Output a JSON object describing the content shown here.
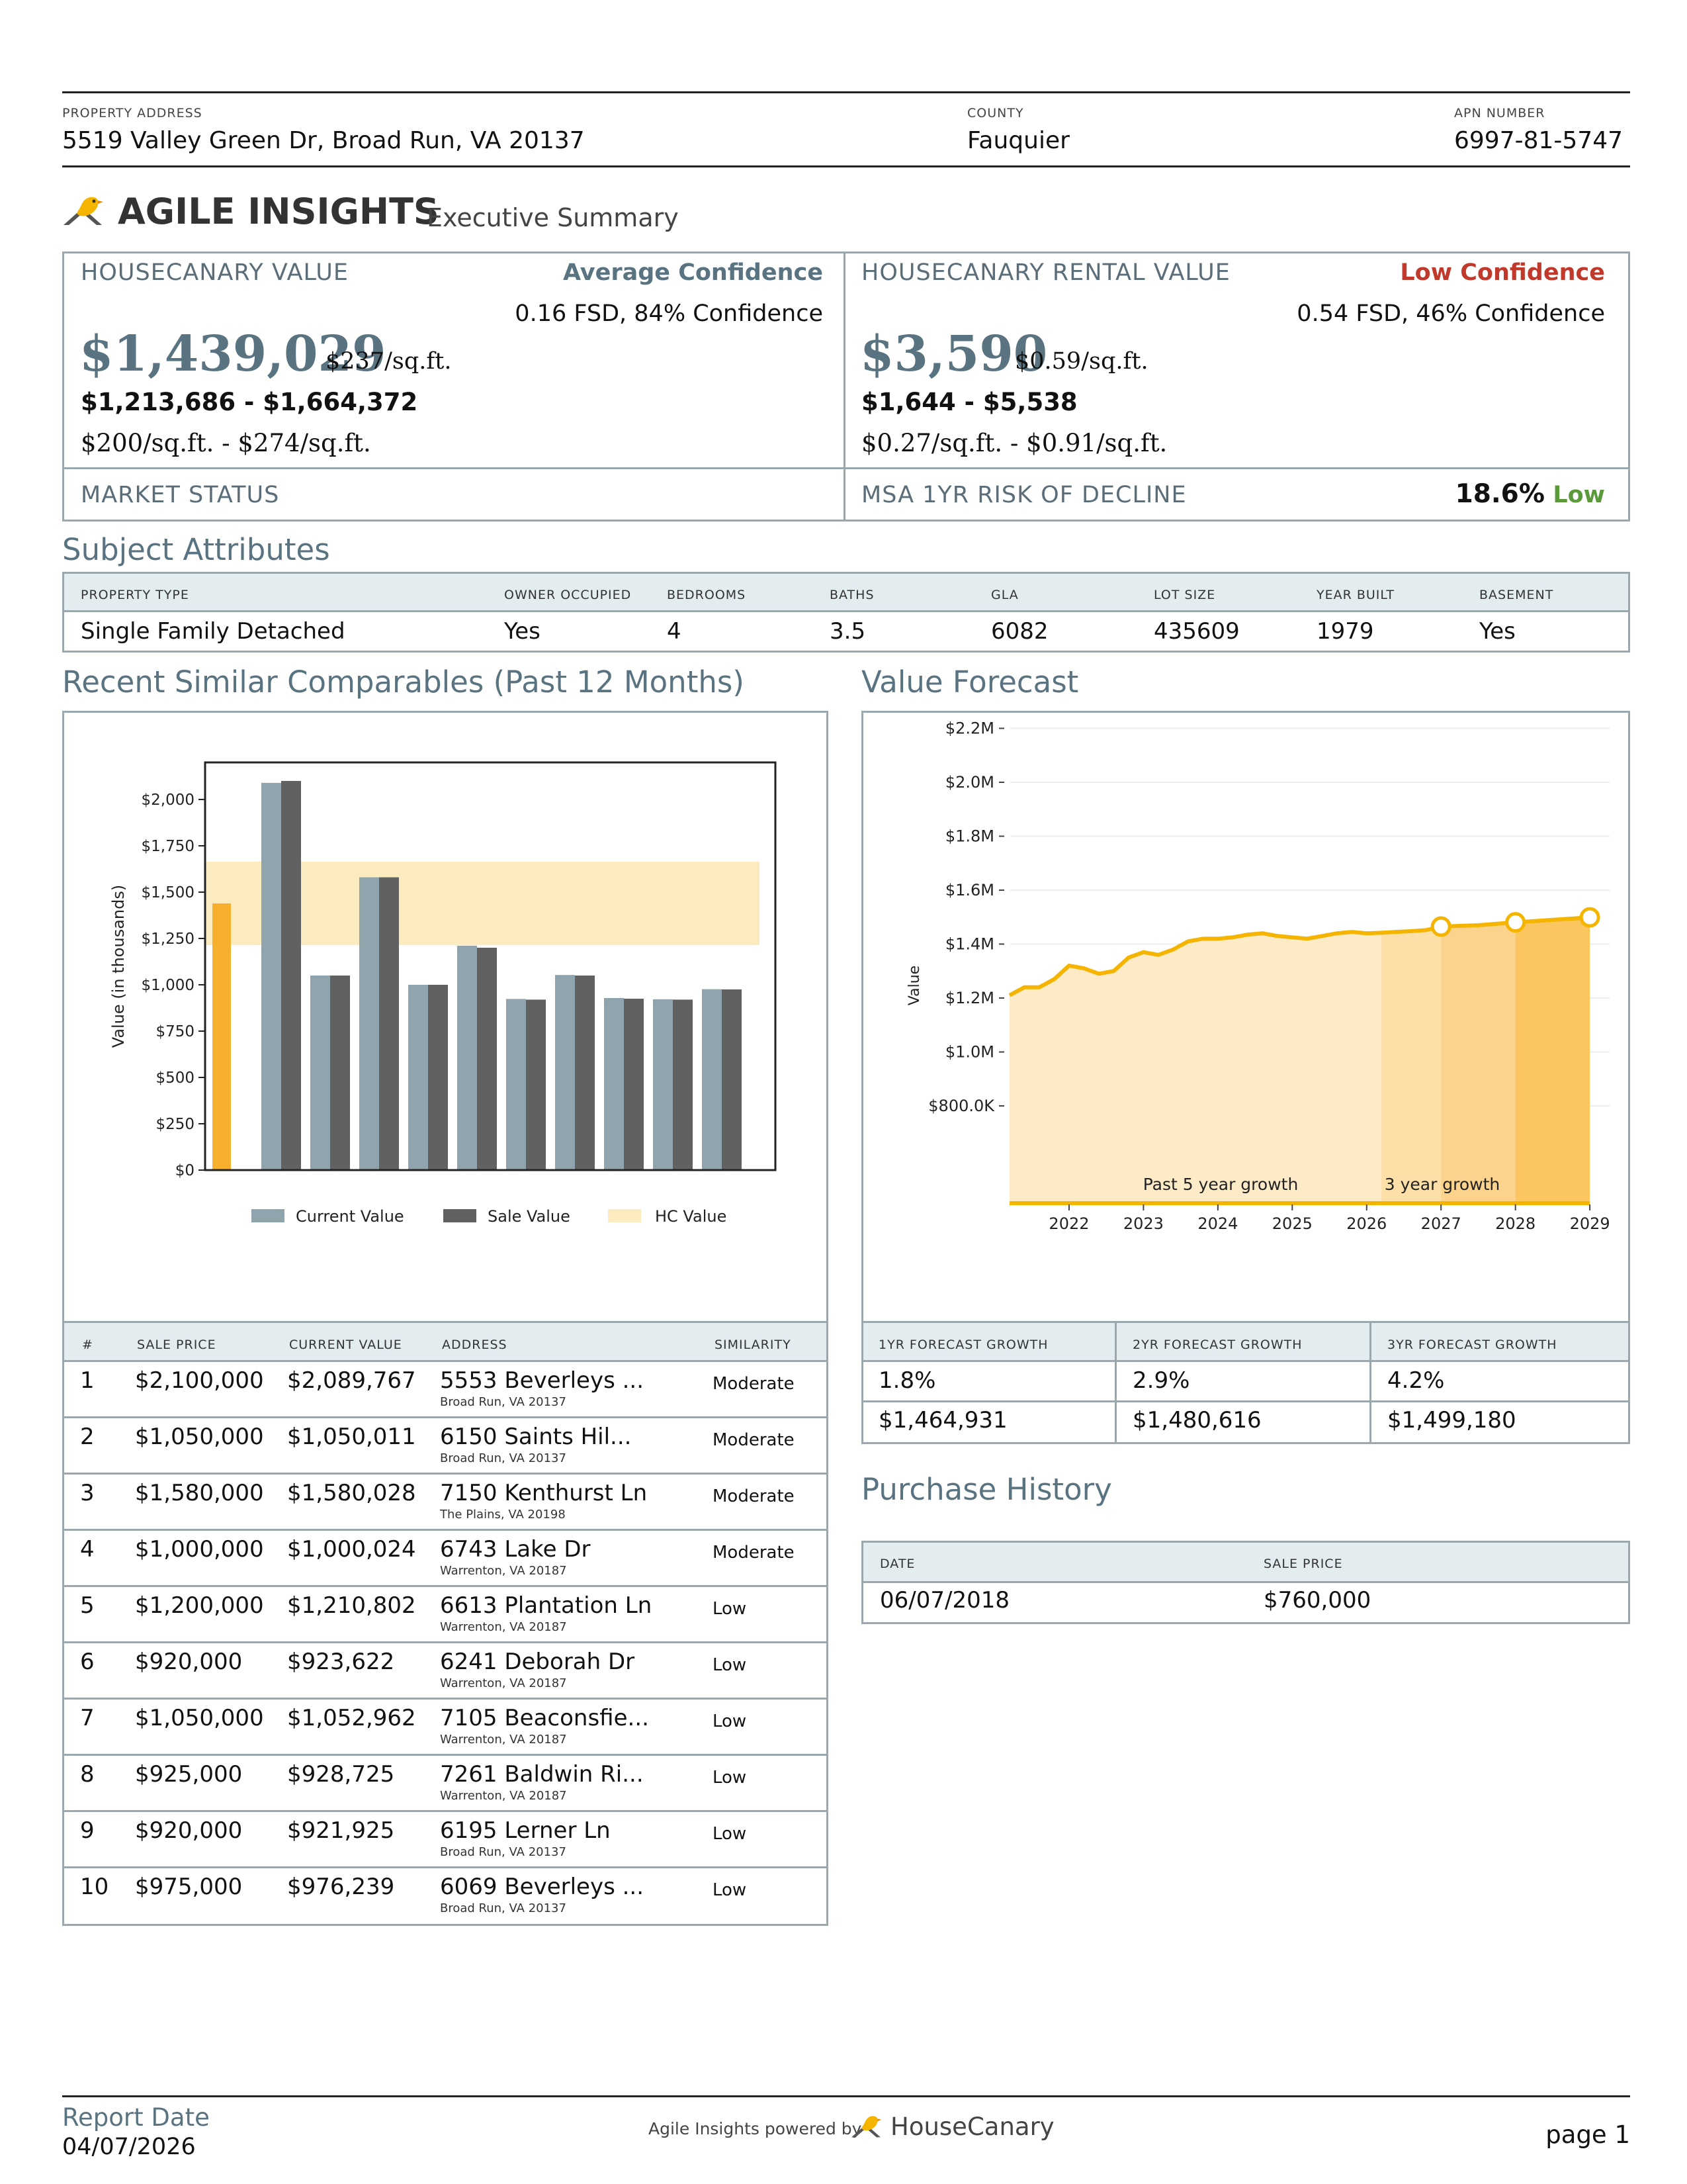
{
  "header": {
    "address_label": "PROPERTY ADDRESS",
    "address": "5519 Valley Green Dr, Broad Run, VA 20137",
    "county_label": "COUNTY",
    "county": "Fauquier",
    "apn_label": "APN NUMBER",
    "apn": "6997-81-5747"
  },
  "brand": {
    "title": "AGILE INSIGHTS",
    "subtitle": "Executive Summary"
  },
  "value": {
    "label": "HOUSECANARY VALUE",
    "confidence": "Average Confidence",
    "fsd": "0.16 FSD, 84% Confidence",
    "amount": "$1,439,029",
    "per_sqft": "$237/sq.ft.",
    "range": "$1,213,686 - $1,664,372",
    "range_sqft": "$200/sq.ft. - $274/sq.ft."
  },
  "rental": {
    "label": "HOUSECANARY RENTAL VALUE",
    "confidence": "Low Confidence",
    "fsd": "0.54 FSD, 46% Confidence",
    "amount": "$3,590",
    "per_sqft": "$0.59/sq.ft.",
    "range": "$1,644 - $5,538",
    "range_sqft": "$0.27/sq.ft. - $0.91/sq.ft."
  },
  "market": {
    "label": "MARKET STATUS",
    "risk_label": "MSA 1YR RISK OF DECLINE",
    "risk_value": "18.6%",
    "risk_level": "Low"
  },
  "attributes": {
    "title": "Subject Attributes",
    "headers": [
      "PROPERTY TYPE",
      "OWNER OCCUPIED",
      "BEDROOMS",
      "BATHS",
      "GLA",
      "LOT SIZE",
      "YEAR BUILT",
      "BASEMENT"
    ],
    "values": [
      "Single Family Detached",
      "Yes",
      "4",
      "3.5",
      "6082",
      "435609",
      "1979",
      "Yes"
    ]
  },
  "comparables": {
    "title": "Recent Similar Comparables (Past 12 Months)",
    "headers": [
      "#",
      "SALE PRICE",
      "CURRENT VALUE",
      "ADDRESS",
      "SIMILARITY"
    ],
    "rows": [
      {
        "n": "1",
        "sale": "$2,100,000",
        "current": "$2,089,767",
        "addr": "5553 Beverleys ...",
        "city": "Broad Run, VA 20137",
        "sim": "Moderate"
      },
      {
        "n": "2",
        "sale": "$1,050,000",
        "current": "$1,050,011",
        "addr": "6150 Saints Hil...",
        "city": "Broad Run, VA 20137",
        "sim": "Moderate"
      },
      {
        "n": "3",
        "sale": "$1,580,000",
        "current": "$1,580,028",
        "addr": "7150 Kenthurst Ln",
        "city": "The Plains, VA 20198",
        "sim": "Moderate"
      },
      {
        "n": "4",
        "sale": "$1,000,000",
        "current": "$1,000,024",
        "addr": "6743 Lake Dr",
        "city": "Warrenton, VA 20187",
        "sim": "Moderate"
      },
      {
        "n": "5",
        "sale": "$1,200,000",
        "current": "$1,210,802",
        "addr": "6613 Plantation Ln",
        "city": "Warrenton, VA 20187",
        "sim": "Low"
      },
      {
        "n": "6",
        "sale": "$920,000",
        "current": "$923,622",
        "addr": "6241 Deborah Dr",
        "city": "Warrenton, VA 20187",
        "sim": "Low"
      },
      {
        "n": "7",
        "sale": "$1,050,000",
        "current": "$1,052,962",
        "addr": "7105 Beaconsfie...",
        "city": "Warrenton, VA 20187",
        "sim": "Low"
      },
      {
        "n": "8",
        "sale": "$925,000",
        "current": "$928,725",
        "addr": "7261 Baldwin Ri...",
        "city": "Warrenton, VA 20187",
        "sim": "Low"
      },
      {
        "n": "9",
        "sale": "$920,000",
        "current": "$921,925",
        "addr": "6195 Lerner Ln",
        "city": "Broad Run, VA 20137",
        "sim": "Low"
      },
      {
        "n": "10",
        "sale": "$975,000",
        "current": "$976,239",
        "addr": "6069 Beverleys ...",
        "city": "Broad Run, VA 20137",
        "sim": "Low"
      }
    ]
  },
  "forecast": {
    "title": "Value Forecast",
    "headers": [
      "1YR FORECAST GROWTH",
      "2YR FORECAST GROWTH",
      "3YR FORECAST GROWTH"
    ],
    "pct": [
      "1.8%",
      "2.9%",
      "4.2%"
    ],
    "values": [
      "$1,464,931",
      "$1,480,616",
      "$1,499,180"
    ]
  },
  "purchase": {
    "title": "Purchase History",
    "headers": [
      "DATE",
      "SALE PRICE"
    ],
    "values": [
      "06/07/2018",
      "$760,000"
    ]
  },
  "footer": {
    "report_label": "Report Date",
    "report_date": "04/07/2026",
    "powered": "Agile Insights powered by",
    "brand": "HouseCanary",
    "page": "page 1"
  },
  "colors": {
    "accent": "#5a7380",
    "low_red": "#c0392b",
    "low_green": "#5a9a3a",
    "current_bar": "#90a4ae",
    "sale_bar": "#616161",
    "hc_band": "#fdebc0",
    "subject_bar": "#f7b02e"
  },
  "chart_data": [
    {
      "type": "bar",
      "ylabel": "Value (in thousands)",
      "ylim": [
        0,
        2200
      ],
      "y_ticks": [
        "$0",
        "$250",
        "$500",
        "$750",
        "$1,000",
        "$1,250",
        "$1,500",
        "$1,750",
        "$2,000"
      ],
      "subject_value": 1439,
      "hc_band": [
        1213.686,
        1664.372
      ],
      "series": [
        {
          "name": "Current Value",
          "values": [
            2089.767,
            1050.011,
            1580.028,
            1000.024,
            1210.802,
            923.622,
            1052.962,
            928.725,
            921.925,
            976.239
          ]
        },
        {
          "name": "Sale Value",
          "values": [
            2100,
            1050,
            1580,
            1000,
            1200,
            920,
            1050,
            925,
            920,
            975
          ]
        }
      ],
      "legend": [
        "Current Value",
        "Sale Value",
        "HC Value"
      ],
      "legend_position": "bottom",
      "grid": false
    },
    {
      "type": "area",
      "ylabel": "Value",
      "ylim": [
        700000,
        2200000
      ],
      "y_ticks": [
        "$800.0K",
        "$1.0M",
        "$1.2M",
        "$1.4M",
        "$1.6M",
        "$1.8M",
        "$2.0M",
        "$2.2M"
      ],
      "x_ticks": [
        "2022",
        "2023",
        "2024",
        "2025",
        "2026",
        "2027",
        "2028",
        "2029"
      ],
      "annotations": [
        "Past 5 year growth",
        "3 year growth"
      ],
      "x": [
        2021.2,
        2021.4,
        2021.6,
        2021.8,
        2022.0,
        2022.2,
        2022.4,
        2022.6,
        2022.8,
        2023.0,
        2023.2,
        2023.4,
        2023.6,
        2023.8,
        2024.0,
        2024.2,
        2024.4,
        2024.6,
        2024.8,
        2025.0,
        2025.2,
        2025.4,
        2025.6,
        2025.8,
        2026.0,
        2026.2,
        2026.4,
        2026.6,
        2026.8,
        2027.0,
        2027.5,
        2028.0,
        2028.5,
        2029.0
      ],
      "y": [
        1210000,
        1240000,
        1240000,
        1270000,
        1320000,
        1310000,
        1290000,
        1300000,
        1350000,
        1370000,
        1360000,
        1380000,
        1410000,
        1420000,
        1420000,
        1425000,
        1435000,
        1440000,
        1430000,
        1425000,
        1420000,
        1430000,
        1440000,
        1445000,
        1440000,
        1442000,
        1445000,
        1448000,
        1452000,
        1464931,
        1470000,
        1480616,
        1490000,
        1499180
      ],
      "forecast_points": [
        [
          2027,
          1464931
        ],
        [
          2028,
          1480616
        ],
        [
          2029,
          1499180
        ]
      ],
      "grid": true
    }
  ]
}
